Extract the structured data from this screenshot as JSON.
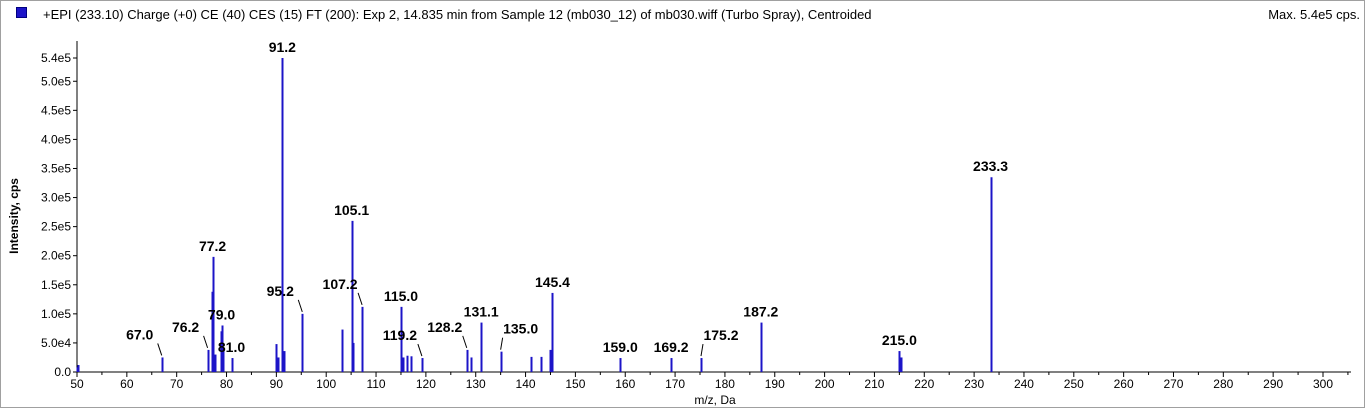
{
  "header": {
    "title": "+EPI (233.10) Charge (+0) CE (40) CES (15) FT (200): Exp 2, 14.835 min from Sample 12 (mb030_12) of mb030.wiff (Turbo Spray), Centroided",
    "max_label": "Max. 5.4e5 cps.",
    "series_color": "#1c14c8"
  },
  "chart_data": {
    "type": "bar",
    "title": "+EPI (233.10) Charge (+0) CE (40) CES (15) FT (200): Exp 2, 14.835 min from Sample 12 (mb030_12) of mb030.wiff (Turbo Spray), Centroided",
    "xlabel": "m/z, Da",
    "ylabel": "Intensity, cps",
    "xlim": [
      50,
      305
    ],
    "ylim": [
      0,
      560000
    ],
    "x_ticks": [
      50,
      60,
      70,
      80,
      90,
      100,
      110,
      120,
      130,
      140,
      150,
      160,
      170,
      180,
      190,
      200,
      210,
      220,
      230,
      240,
      250,
      260,
      270,
      280,
      290,
      300
    ],
    "x_tick_labels": [
      "50",
      "60",
      "70",
      "80",
      "90",
      "100",
      "110",
      "120",
      "130",
      "140",
      "150",
      "160",
      "170",
      "180",
      "190",
      "200",
      "210",
      "220",
      "230",
      "240",
      "250",
      "260",
      "270",
      "280",
      "290",
      "300"
    ],
    "y_ticks": [
      0,
      50000,
      100000,
      150000,
      200000,
      250000,
      300000,
      350000,
      400000,
      450000,
      500000,
      540000
    ],
    "y_tick_labels": [
      "0.0",
      "5.0e4",
      "1.0e5",
      "1.5e5",
      "2.0e5",
      "2.5e5",
      "3.0e5",
      "3.5e5",
      "4.0e5",
      "4.5e5",
      "5.0e5",
      "5.4e5"
    ],
    "peaks": [
      {
        "x": 50.1,
        "y": 8000
      },
      {
        "x": 50.3,
        "y": 12000
      },
      {
        "x": 67.0,
        "y": 25000
      },
      {
        "x": 76.2,
        "y": 38000
      },
      {
        "x": 77.0,
        "y": 138000
      },
      {
        "x": 77.2,
        "y": 198000
      },
      {
        "x": 77.6,
        "y": 30000
      },
      {
        "x": 78.8,
        "y": 70000
      },
      {
        "x": 79.0,
        "y": 80000
      },
      {
        "x": 79.3,
        "y": 40000
      },
      {
        "x": 81.0,
        "y": 24000
      },
      {
        "x": 90.0,
        "y": 48000
      },
      {
        "x": 90.3,
        "y": 25000
      },
      {
        "x": 91.2,
        "y": 540000
      },
      {
        "x": 91.6,
        "y": 36000
      },
      {
        "x": 95.2,
        "y": 100000
      },
      {
        "x": 103.2,
        "y": 73000
      },
      {
        "x": 105.1,
        "y": 260000
      },
      {
        "x": 105.4,
        "y": 50000
      },
      {
        "x": 107.2,
        "y": 112000
      },
      {
        "x": 115.0,
        "y": 112000
      },
      {
        "x": 115.4,
        "y": 25000
      },
      {
        "x": 116.2,
        "y": 28000
      },
      {
        "x": 117.0,
        "y": 27000
      },
      {
        "x": 119.2,
        "y": 24000
      },
      {
        "x": 128.2,
        "y": 38000
      },
      {
        "x": 129.1,
        "y": 25000
      },
      {
        "x": 131.1,
        "y": 85000
      },
      {
        "x": 135.0,
        "y": 35000
      },
      {
        "x": 141.0,
        "y": 26000
      },
      {
        "x": 143.0,
        "y": 26000
      },
      {
        "x": 145.0,
        "y": 38000
      },
      {
        "x": 145.4,
        "y": 136000
      },
      {
        "x": 159.0,
        "y": 24000
      },
      {
        "x": 169.2,
        "y": 24000
      },
      {
        "x": 175.2,
        "y": 24000
      },
      {
        "x": 187.2,
        "y": 85000
      },
      {
        "x": 215.0,
        "y": 36000
      },
      {
        "x": 215.3,
        "y": 25000
      },
      {
        "x": 233.3,
        "y": 335000
      }
    ],
    "annotations": [
      {
        "x": 67.0,
        "y": 25000,
        "text": "67.0"
      },
      {
        "x": 76.2,
        "y": 38000,
        "text": "76.2"
      },
      {
        "x": 77.2,
        "y": 198000,
        "text": "77.2"
      },
      {
        "x": 79.0,
        "y": 80000,
        "text": "79.0"
      },
      {
        "x": 81.0,
        "y": 24000,
        "text": "81.0"
      },
      {
        "x": 91.2,
        "y": 540000,
        "text": "91.2"
      },
      {
        "x": 95.2,
        "y": 100000,
        "text": "95.2"
      },
      {
        "x": 105.1,
        "y": 260000,
        "text": "105.1"
      },
      {
        "x": 107.2,
        "y": 112000,
        "text": "107.2"
      },
      {
        "x": 115.0,
        "y": 112000,
        "text": "115.0"
      },
      {
        "x": 119.2,
        "y": 24000,
        "text": "119.2"
      },
      {
        "x": 128.2,
        "y": 38000,
        "text": "128.2"
      },
      {
        "x": 131.1,
        "y": 85000,
        "text": "131.1"
      },
      {
        "x": 135.0,
        "y": 35000,
        "text": "135.0"
      },
      {
        "x": 145.4,
        "y": 136000,
        "text": "145.4"
      },
      {
        "x": 159.0,
        "y": 24000,
        "text": "159.0"
      },
      {
        "x": 169.2,
        "y": 24000,
        "text": "169.2"
      },
      {
        "x": 175.2,
        "y": 24000,
        "text": "175.2"
      },
      {
        "x": 187.2,
        "y": 85000,
        "text": "187.2"
      },
      {
        "x": 215.0,
        "y": 36000,
        "text": "215.0"
      },
      {
        "x": 233.3,
        "y": 335000,
        "text": "233.3"
      }
    ]
  }
}
